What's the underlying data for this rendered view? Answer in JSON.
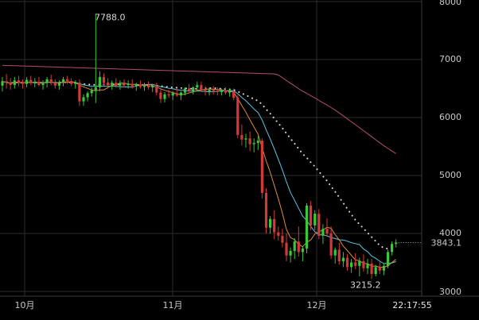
{
  "chart_data": {
    "type": "candlestick",
    "y_ticks": [
      "8000",
      "7000",
      "6000",
      "5000",
      "4000",
      "3000"
    ],
    "y_tick_values": [
      8000,
      7000,
      6000,
      5000,
      4000,
      3000
    ],
    "ylim": [
      3000,
      8000
    ],
    "x_labels": [
      "10月",
      "11月",
      "12月",
      "22:17:55"
    ],
    "grid": true,
    "annotations": {
      "high_label": "7788.0",
      "high_value": 7788,
      "low_label": "3215.2",
      "low_value": 3215.2,
      "current_price_label": "3843.1",
      "current_price": 3843.1
    },
    "colors": {
      "up": "#38c838",
      "down": "#d23a3a",
      "ma_short": "#e08a3c",
      "ma_mid": "#5bc6e0",
      "ma_long": "#b0506a",
      "ma_dotted": "#d8d8d8",
      "grid": "#2e2e2e"
    },
    "candles": [
      [
        6550,
        6700,
        6450,
        6620
      ],
      [
        6620,
        6750,
        6500,
        6600
      ],
      [
        6600,
        6680,
        6480,
        6560
      ],
      [
        6560,
        6700,
        6500,
        6640
      ],
      [
        6640,
        6720,
        6540,
        6600
      ],
      [
        6600,
        6660,
        6500,
        6580
      ],
      [
        6580,
        6700,
        6520,
        6650
      ],
      [
        6650,
        6720,
        6560,
        6590
      ],
      [
        6590,
        6680,
        6520,
        6620
      ],
      [
        6620,
        6700,
        6540,
        6560
      ],
      [
        6560,
        6640,
        6480,
        6600
      ],
      [
        6600,
        6700,
        6520,
        6660
      ],
      [
        6660,
        6740,
        6560,
        6600
      ],
      [
        6600,
        6660,
        6500,
        6550
      ],
      [
        6550,
        6640,
        6480,
        6610
      ],
      [
        6610,
        6700,
        6540,
        6660
      ],
      [
        6660,
        6720,
        6580,
        6630
      ],
      [
        6630,
        6680,
        6540,
        6580
      ],
      [
        6580,
        6640,
        6500,
        6600
      ],
      [
        6600,
        6660,
        6200,
        6280
      ],
      [
        6280,
        6400,
        6200,
        6350
      ],
      [
        6350,
        6450,
        6280,
        6420
      ],
      [
        6420,
        6520,
        6360,
        6470
      ],
      [
        6470,
        7788,
        6250,
        6520
      ],
      [
        6520,
        6800,
        6450,
        6700
      ],
      [
        6700,
        6760,
        6550,
        6600
      ],
      [
        6600,
        6680,
        6500,
        6560
      ],
      [
        6560,
        6640,
        6480,
        6600
      ],
      [
        6600,
        6680,
        6520,
        6550
      ],
      [
        6550,
        6640,
        6480,
        6600
      ],
      [
        6600,
        6660,
        6520,
        6560
      ],
      [
        6560,
        6640,
        6500,
        6580
      ],
      [
        6580,
        6660,
        6500,
        6540
      ],
      [
        6540,
        6600,
        6460,
        6570
      ],
      [
        6570,
        6640,
        6500,
        6530
      ],
      [
        6530,
        6600,
        6460,
        6550
      ],
      [
        6550,
        6620,
        6480,
        6520
      ],
      [
        6520,
        6580,
        6440,
        6540
      ],
      [
        6540,
        6600,
        6380,
        6430
      ],
      [
        6430,
        6500,
        6250,
        6320
      ],
      [
        6320,
        6440,
        6260,
        6400
      ],
      [
        6400,
        6480,
        6340,
        6380
      ],
      [
        6380,
        6450,
        6300,
        6420
      ],
      [
        6420,
        6500,
        6360,
        6380
      ],
      [
        6380,
        6450,
        6300,
        6430
      ],
      [
        6430,
        6520,
        6380,
        6500
      ],
      [
        6500,
        6580,
        6440,
        6460
      ],
      [
        6460,
        6540,
        6400,
        6520
      ],
      [
        6520,
        6620,
        6460,
        6560
      ],
      [
        6560,
        6620,
        6440,
        6480
      ],
      [
        6480,
        6540,
        6380,
        6450
      ],
      [
        6450,
        6520,
        6380,
        6480
      ],
      [
        6480,
        6540,
        6400,
        6460
      ],
      [
        6460,
        6520,
        6380,
        6440
      ],
      [
        6440,
        6500,
        6380,
        6470
      ],
      [
        6470,
        6520,
        6400,
        6430
      ],
      [
        6430,
        6490,
        6360,
        6450
      ],
      [
        6450,
        6500,
        6300,
        6340
      ],
      [
        6340,
        6380,
        5640,
        5700
      ],
      [
        5700,
        5880,
        5520,
        5620
      ],
      [
        5620,
        5720,
        5480,
        5640
      ],
      [
        5640,
        5760,
        5420,
        5540
      ],
      [
        5540,
        5640,
        5400,
        5560
      ],
      [
        5560,
        5680,
        5440,
        5600
      ],
      [
        5600,
        5640,
        4600,
        4700
      ],
      [
        4700,
        4780,
        4000,
        4100
      ],
      [
        4100,
        4300,
        4000,
        4250
      ],
      [
        4250,
        4400,
        3900,
        4020
      ],
      [
        4020,
        4120,
        3880,
        3960
      ],
      [
        3960,
        4080,
        3760,
        3840
      ],
      [
        3840,
        4000,
        3520,
        3620
      ],
      [
        3620,
        3760,
        3500,
        3700
      ],
      [
        3700,
        3920,
        3560,
        3860
      ],
      [
        3860,
        4120,
        3600,
        3680
      ],
      [
        3680,
        3780,
        3520,
        3740
      ],
      [
        3740,
        4520,
        3660,
        4480
      ],
      [
        4480,
        4560,
        4060,
        4140
      ],
      [
        4140,
        4400,
        4060,
        4340
      ],
      [
        4340,
        4420,
        3900,
        3960
      ],
      [
        3960,
        4160,
        3820,
        4080
      ],
      [
        4080,
        4260,
        3940,
        4000
      ],
      [
        4000,
        4120,
        3560,
        3620
      ],
      [
        3620,
        3760,
        3480,
        3720
      ],
      [
        3720,
        3840,
        3460,
        3520
      ],
      [
        3520,
        3680,
        3420,
        3580
      ],
      [
        3580,
        3640,
        3360,
        3420
      ],
      [
        3420,
        3560,
        3320,
        3500
      ],
      [
        3500,
        3660,
        3380,
        3440
      ],
      [
        3440,
        3580,
        3260,
        3520
      ],
      [
        3520,
        3640,
        3340,
        3400
      ],
      [
        3400,
        3560,
        3300,
        3480
      ],
      [
        3480,
        3560,
        3215,
        3300
      ],
      [
        3300,
        3460,
        3260,
        3420
      ],
      [
        3420,
        3520,
        3300,
        3360
      ],
      [
        3360,
        3480,
        3280,
        3440
      ],
      [
        3440,
        3720,
        3400,
        3680
      ],
      [
        3680,
        3860,
        3620,
        3820
      ],
      [
        3820,
        3900,
        3760,
        3843
      ]
    ]
  }
}
